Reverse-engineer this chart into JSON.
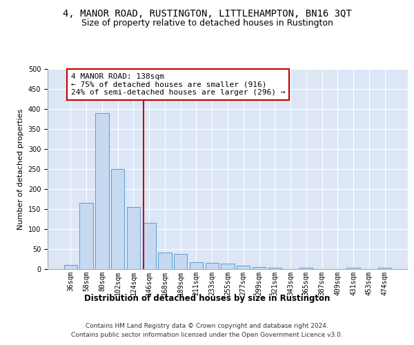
{
  "title": "4, MANOR ROAD, RUSTINGTON, LITTLEHAMPTON, BN16 3QT",
  "subtitle": "Size of property relative to detached houses in Rustington",
  "xlabel": "Distribution of detached houses by size in Rustington",
  "ylabel": "Number of detached properties",
  "categories": [
    "36sqm",
    "58sqm",
    "80sqm",
    "102sqm",
    "124sqm",
    "146sqm",
    "168sqm",
    "189sqm",
    "211sqm",
    "233sqm",
    "255sqm",
    "277sqm",
    "299sqm",
    "321sqm",
    "343sqm",
    "365sqm",
    "387sqm",
    "409sqm",
    "431sqm",
    "453sqm",
    "474sqm"
  ],
  "values": [
    11,
    165,
    390,
    250,
    155,
    115,
    42,
    38,
    18,
    15,
    13,
    8,
    6,
    4,
    0,
    3,
    0,
    0,
    3,
    0,
    3
  ],
  "bar_color": "#c6d9f0",
  "bar_edge_color": "#5b9bd5",
  "vline_color": "#c00000",
  "annotation_line1": "4 MANOR ROAD: 138sqm",
  "annotation_line2": "← 75% of detached houses are smaller (916)",
  "annotation_line3": "24% of semi-detached houses are larger (296) →",
  "annotation_box_color": "#ffffff",
  "annotation_box_edge_color": "#c00000",
  "ylim": [
    0,
    500
  ],
  "yticks": [
    0,
    50,
    100,
    150,
    200,
    250,
    300,
    350,
    400,
    450,
    500
  ],
  "bg_color": "#dce6f5",
  "footer_line1": "Contains HM Land Registry data © Crown copyright and database right 2024.",
  "footer_line2": "Contains public sector information licensed under the Open Government Licence v3.0.",
  "title_fontsize": 10,
  "subtitle_fontsize": 9,
  "xlabel_fontsize": 8.5,
  "ylabel_fontsize": 8,
  "tick_fontsize": 7,
  "annotation_fontsize": 8,
  "footer_fontsize": 6.5
}
